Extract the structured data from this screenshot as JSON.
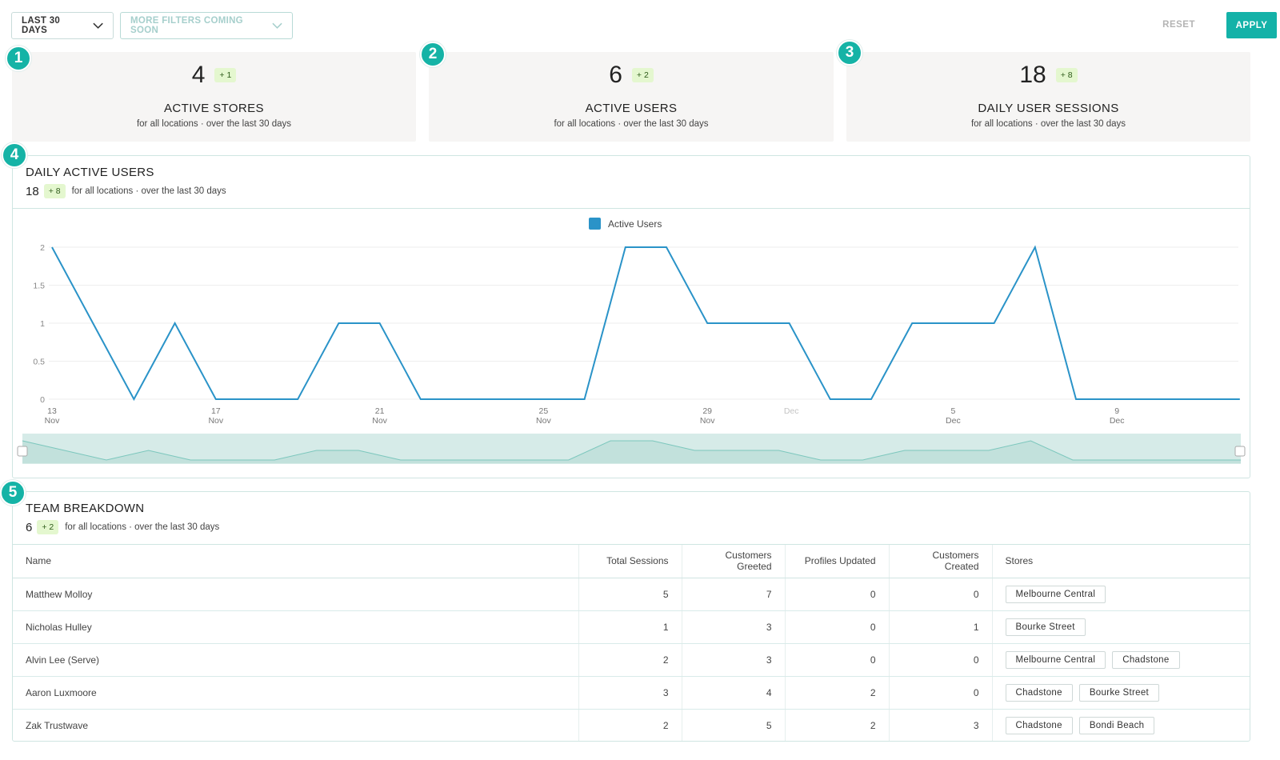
{
  "filters": {
    "date_range": "LAST 30 DAYS",
    "more_filters": "MORE FILTERS COMING SOON",
    "reset": "RESET",
    "apply": "APPLY"
  },
  "steps": [
    "1",
    "2",
    "3",
    "4",
    "5"
  ],
  "stats": [
    {
      "value": "4",
      "delta": "+ 1",
      "label": "ACTIVE STORES",
      "sub": "for all locations · over the last 30 days"
    },
    {
      "value": "6",
      "delta": "+ 2",
      "label": "ACTIVE USERS",
      "sub": "for all locations · over the last 30 days"
    },
    {
      "value": "18",
      "delta": "+ 8",
      "label": "DAILY USER SESSIONS",
      "sub": "for all locations · over the last 30 days"
    }
  ],
  "daily_active": {
    "title": "DAILY ACTIVE USERS",
    "value": "18",
    "delta": "+ 8",
    "sub": "for all locations · over the last 30 days"
  },
  "chart_data": {
    "type": "line",
    "legend": [
      "Active Users"
    ],
    "color": "#2a93c8",
    "ylim": [
      0,
      2
    ],
    "y_ticks": [
      "0",
      "0.5",
      "1",
      "1.5",
      "2"
    ],
    "x_tick_labels": [
      {
        "day": "13",
        "month": "Nov"
      },
      {
        "day": "17",
        "month": "Nov"
      },
      {
        "day": "21",
        "month": "Nov"
      },
      {
        "day": "25",
        "month": "Nov"
      },
      {
        "day": "29",
        "month": "Nov"
      },
      {
        "day": "Dec",
        "month": ""
      },
      {
        "day": "5",
        "month": "Dec"
      },
      {
        "day": "9",
        "month": "Dec"
      }
    ],
    "series": [
      {
        "name": "Active Users",
        "x": [
          "2019-11-13",
          "2019-11-14",
          "2019-11-15",
          "2019-11-16",
          "2019-11-17",
          "2019-11-18",
          "2019-11-19",
          "2019-11-20",
          "2019-11-21",
          "2019-11-22",
          "2019-11-23",
          "2019-11-24",
          "2019-11-25",
          "2019-11-26",
          "2019-11-27",
          "2019-11-28",
          "2019-11-29",
          "2019-11-30",
          "2019-12-01",
          "2019-12-02",
          "2019-12-03",
          "2019-12-04",
          "2019-12-05",
          "2019-12-06",
          "2019-12-07",
          "2019-12-08",
          "2019-12-09",
          "2019-12-10",
          "2019-12-11",
          "2019-12-12"
        ],
        "values": [
          2,
          1,
          0,
          1,
          0,
          0,
          0,
          1,
          1,
          0,
          0,
          0,
          0,
          0,
          2,
          2,
          1,
          1,
          1,
          0,
          0,
          1,
          1,
          1,
          2,
          0,
          0,
          0,
          0,
          0
        ]
      }
    ]
  },
  "team": {
    "title": "TEAM BREAKDOWN",
    "value": "6",
    "delta": "+ 2",
    "sub": "for all locations · over the last 30 days",
    "columns": [
      "Name",
      "Total Sessions",
      "Customers Greeted",
      "Profiles Updated",
      "Customers Created",
      "Stores"
    ],
    "rows": [
      {
        "name": "Matthew Molloy",
        "sessions": "5",
        "greeted": "7",
        "updated": "0",
        "created": "0",
        "stores": [
          "Melbourne Central"
        ]
      },
      {
        "name": "Nicholas Hulley",
        "sessions": "1",
        "greeted": "3",
        "updated": "0",
        "created": "1",
        "stores": [
          "Bourke Street"
        ]
      },
      {
        "name": "Alvin Lee (Serve)",
        "sessions": "2",
        "greeted": "3",
        "updated": "0",
        "created": "0",
        "stores": [
          "Melbourne Central",
          "Chadstone"
        ]
      },
      {
        "name": "Aaron Luxmoore",
        "sessions": "3",
        "greeted": "4",
        "updated": "2",
        "created": "0",
        "stores": [
          "Chadstone",
          "Bourke Street"
        ]
      },
      {
        "name": "Zak Trustwave",
        "sessions": "2",
        "greeted": "5",
        "updated": "2",
        "created": "3",
        "stores": [
          "Chadstone",
          "Bondi Beach"
        ]
      }
    ]
  }
}
